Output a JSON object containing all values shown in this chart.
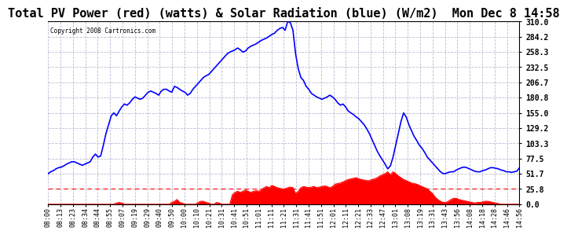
{
  "title": "Total PV Power (red) (watts) & Solar Radiation (blue) (W/m2)  Mon Dec 8 14:58",
  "copyright": "Copyright 2008 Cartronics.com",
  "yticks": [
    0.0,
    25.8,
    51.7,
    77.5,
    103.3,
    129.2,
    155.0,
    180.8,
    206.7,
    232.5,
    258.3,
    284.2,
    310.0
  ],
  "ytick_labels": [
    "0.0",
    "25.8",
    "51.7",
    "77.5",
    "103.3",
    "129.2",
    "155.0",
    "180.8",
    "206.7",
    "232.5",
    "258.3",
    "284.2",
    "310.0"
  ],
  "ymax": 310.0,
  "ymin": 0.0,
  "xtick_labels": [
    "08:00",
    "08:13",
    "08:23",
    "08:34",
    "08:44",
    "08:55",
    "09:07",
    "09:19",
    "09:29",
    "09:40",
    "09:50",
    "10:00",
    "10:10",
    "10:21",
    "10:31",
    "10:41",
    "10:51",
    "11:01",
    "11:11",
    "11:21",
    "11:31",
    "11:41",
    "11:51",
    "12:01",
    "12:11",
    "12:21",
    "12:33",
    "12:47",
    "13:01",
    "13:08",
    "13:19",
    "13:31",
    "13:43",
    "13:56",
    "14:08",
    "14:18",
    "14:28",
    "14:46",
    "14:56"
  ],
  "background_color": "#ffffff",
  "grid_color": "#aaaacc",
  "title_fontsize": 11,
  "blue_color": "#0000ff",
  "red_color": "#ff0000",
  "dashed_line_color": "#ff0000",
  "dashed_line_y": 25.8,
  "blue_values": [
    51.7,
    55,
    57,
    60,
    62,
    63,
    65,
    68,
    70,
    72,
    72,
    70,
    68,
    66,
    68,
    70,
    72,
    80,
    85,
    80,
    82,
    100,
    120,
    135,
    150,
    155,
    150,
    158,
    165,
    170,
    168,
    172,
    178,
    182,
    180,
    178,
    180,
    185,
    190,
    192,
    190,
    188,
    185,
    192,
    195,
    195,
    192,
    190,
    200,
    198,
    195,
    192,
    190,
    185,
    188,
    195,
    200,
    205,
    210,
    215,
    218,
    220,
    225,
    230,
    235,
    240,
    245,
    250,
    255,
    258,
    260,
    262,
    265,
    262,
    258,
    260,
    265,
    268,
    270,
    272,
    275,
    278,
    280,
    282,
    285,
    288,
    290,
    295,
    298,
    300,
    295,
    310,
    308,
    295,
    255,
    230,
    215,
    210,
    200,
    195,
    188,
    185,
    182,
    180,
    178,
    180,
    182,
    185,
    182,
    178,
    172,
    168,
    170,
    165,
    158,
    155,
    152,
    148,
    145,
    140,
    135,
    128,
    120,
    110,
    100,
    90,
    82,
    75,
    68,
    60,
    65,
    80,
    100,
    120,
    140,
    155,
    148,
    135,
    125,
    115,
    108,
    100,
    95,
    88,
    80,
    75,
    70,
    65,
    60,
    55,
    52,
    52,
    54,
    55,
    55,
    58,
    60,
    62,
    63,
    62,
    60,
    58,
    56,
    55,
    55,
    57,
    58,
    60,
    62,
    62,
    61,
    60,
    58,
    57,
    55,
    55,
    54,
    55,
    56,
    62
  ],
  "red_values": [
    0,
    0,
    0,
    0,
    0,
    0,
    0,
    0,
    0,
    0,
    0,
    0,
    0,
    0,
    0,
    0,
    0,
    0,
    0,
    0,
    0,
    0,
    0,
    0,
    0,
    0,
    2,
    3,
    2,
    0,
    0,
    0,
    0,
    0,
    0,
    0,
    0,
    0,
    0,
    0,
    0,
    0,
    0,
    0,
    0,
    0,
    0,
    3,
    5,
    8,
    3,
    2,
    0,
    0,
    0,
    0,
    0,
    3,
    5,
    5,
    3,
    2,
    0,
    0,
    3,
    2,
    0,
    0,
    0,
    0,
    16,
    20,
    22,
    20,
    22,
    24,
    22,
    20,
    22,
    23,
    22,
    24,
    28,
    30,
    28,
    32,
    30,
    28,
    27,
    26,
    26,
    28,
    29,
    28,
    18,
    22,
    28,
    30,
    29,
    28,
    29,
    30,
    28,
    29,
    30,
    31,
    30,
    28,
    30,
    34,
    35,
    36,
    38,
    40,
    42,
    43,
    44,
    45,
    43,
    42,
    41,
    40,
    40,
    42,
    43,
    45,
    48,
    50,
    52,
    55,
    50,
    55,
    52,
    48,
    45,
    42,
    40,
    38,
    36,
    35,
    34,
    32,
    30,
    28,
    26,
    22,
    18,
    12,
    8,
    5,
    3,
    3,
    5,
    8,
    10,
    10,
    8,
    7,
    6,
    5,
    4,
    3,
    2,
    3,
    3,
    4,
    5,
    5,
    4,
    3,
    2,
    1,
    0,
    0,
    0,
    0,
    0,
    0,
    0,
    0
  ]
}
